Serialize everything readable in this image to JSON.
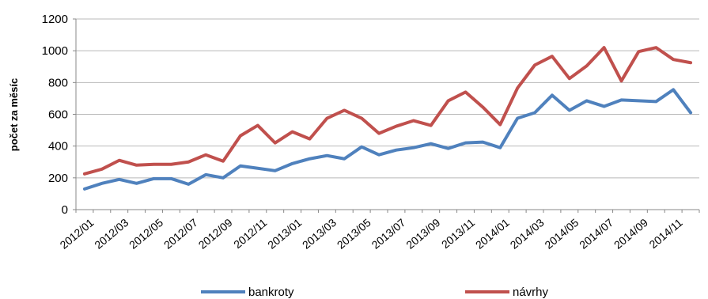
{
  "chart_data": {
    "type": "line",
    "title": "",
    "xlabel": "",
    "ylabel": "počet za měsíc",
    "ylim": [
      0,
      1200
    ],
    "yticks": [
      0,
      200,
      400,
      600,
      800,
      1000,
      1200
    ],
    "grid": "horizontal",
    "legend_position": "bottom",
    "x": [
      "2012/01",
      "2012/02",
      "2012/03",
      "2012/04",
      "2012/05",
      "2012/06",
      "2012/07",
      "2012/08",
      "2012/09",
      "2012/10",
      "2012/11",
      "2012/12",
      "2013/01",
      "2013/02",
      "2013/03",
      "2013/04",
      "2013/05",
      "2013/06",
      "2013/07",
      "2013/08",
      "2013/09",
      "2013/10",
      "2013/11",
      "2013/12",
      "2014/01",
      "2014/02",
      "2014/03",
      "2014/04",
      "2014/05",
      "2014/06",
      "2014/07",
      "2014/08",
      "2014/09",
      "2014/10",
      "2014/11",
      "2014/12"
    ],
    "xtick_labels": [
      "2012/01",
      "2012/03",
      "2012/05",
      "2012/07",
      "2012/09",
      "2012/11",
      "2013/01",
      "2013/03",
      "2013/05",
      "2013/07",
      "2013/09",
      "2013/11",
      "2014/01",
      "2014/03",
      "2014/05",
      "2014/07",
      "2014/09",
      "2014/11"
    ],
    "series": [
      {
        "name": "bankroty",
        "color": "#4f81bd",
        "values": [
          130,
          165,
          190,
          165,
          195,
          195,
          160,
          220,
          200,
          275,
          260,
          245,
          290,
          320,
          340,
          320,
          395,
          345,
          375,
          390,
          415,
          385,
          420,
          425,
          390,
          575,
          610,
          720,
          625,
          685,
          650,
          690,
          685,
          680,
          755,
          610
        ]
      },
      {
        "name": "návrhy",
        "color": "#c0504d",
        "values": [
          225,
          255,
          310,
          280,
          285,
          285,
          300,
          345,
          305,
          465,
          530,
          420,
          490,
          445,
          575,
          625,
          575,
          480,
          525,
          560,
          530,
          685,
          740,
          645,
          535,
          765,
          910,
          965,
          825,
          905,
          1020,
          810,
          995,
          1020,
          945,
          925
        ]
      }
    ]
  }
}
